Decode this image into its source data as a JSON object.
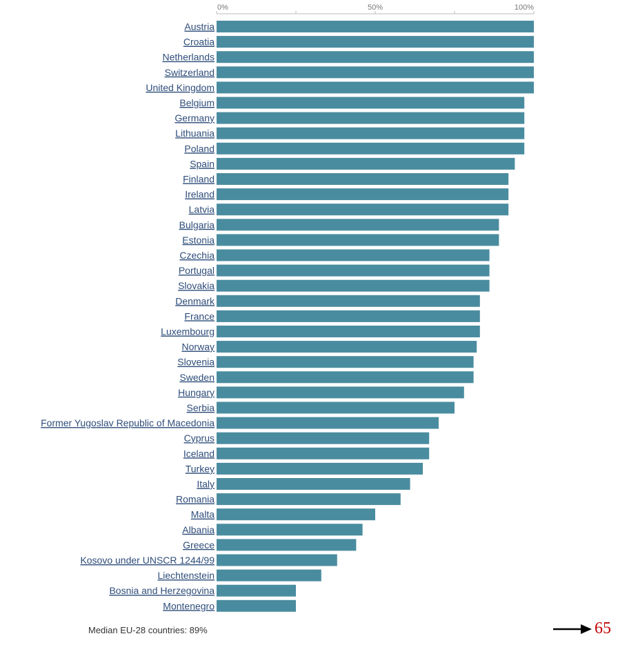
{
  "chart_data": {
    "type": "bar",
    "orientation": "horizontal",
    "categories": [
      "Austria",
      "Croatia",
      "Netherlands",
      "Switzerland",
      "United Kingdom",
      "Belgium",
      "Germany",
      "Lithuania",
      "Poland",
      "Spain",
      "Finland",
      "Ireland",
      "Latvia",
      "Bulgaria",
      "Estonia",
      "Czechia",
      "Portugal",
      "Slovakia",
      "Denmark",
      "France",
      "Luxembourg",
      "Norway",
      "Slovenia",
      "Sweden",
      "Hungary",
      "Serbia",
      "Former Yugoslav Republic of Macedonia",
      "Cyprus",
      "Iceland",
      "Turkey",
      "Italy",
      "Romania",
      "Malta",
      "Albania",
      "Greece",
      "Kosovo under UNSCR 1244/99",
      "Liechtenstein",
      "Bosnia and Herzegovina",
      "Montenegro"
    ],
    "values": [
      100,
      100,
      100,
      100,
      100,
      97,
      97,
      97,
      97,
      94,
      92,
      92,
      92,
      89,
      89,
      86,
      86,
      86,
      83,
      83,
      83,
      82,
      81,
      81,
      78,
      75,
      70,
      67,
      67,
      65,
      61,
      58,
      50,
      46,
      44,
      38,
      33,
      25,
      25
    ],
    "x_ticks": [
      "0%",
      "50%",
      "100%"
    ],
    "xlim": [
      0,
      100
    ],
    "bar_color": "#4a8c9f",
    "label_color": "#2e4d7a",
    "grid": false
  },
  "footer": {
    "note": "Median EU-28 countries: 89%",
    "page_number": "65",
    "arrow_icon": "right-arrow-icon"
  }
}
